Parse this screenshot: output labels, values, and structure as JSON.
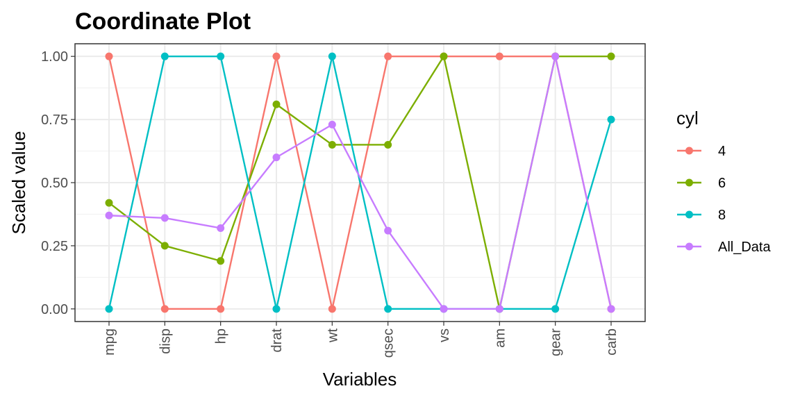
{
  "chart_data": {
    "type": "line",
    "title": "Coordinate Plot",
    "xlabel": "Variables",
    "ylabel": "Scaled value",
    "categories": [
      "mpg",
      "disp",
      "hp",
      "drat",
      "wt",
      "qsec",
      "vs",
      "am",
      "gear",
      "carb"
    ],
    "ylim": [
      -0.05,
      1.05
    ],
    "yticks": [
      0,
      0.25,
      0.5,
      0.75,
      1
    ],
    "ytick_labels": [
      "0.00",
      "0.25",
      "0.50",
      "0.75",
      "1.00"
    ],
    "grid": true,
    "legend": {
      "title": "cyl",
      "position": "right"
    },
    "series": [
      {
        "name": "4",
        "color": "#F8766D",
        "values": [
          1,
          0,
          0,
          1,
          0,
          1,
          1,
          1,
          1,
          0
        ]
      },
      {
        "name": "6",
        "color": "#7CAE00",
        "values": [
          0.42,
          0.25,
          0.19,
          0.81,
          0.65,
          0.65,
          1,
          0,
          1,
          1
        ]
      },
      {
        "name": "8",
        "color": "#00BFC4",
        "values": [
          0,
          1,
          1,
          0,
          1,
          0,
          0,
          0,
          0,
          0.75
        ]
      },
      {
        "name": "All_Data",
        "color": "#C77CFF",
        "values": [
          0.37,
          0.36,
          0.32,
          0.6,
          0.73,
          0.31,
          0,
          0,
          1,
          0
        ]
      }
    ]
  }
}
